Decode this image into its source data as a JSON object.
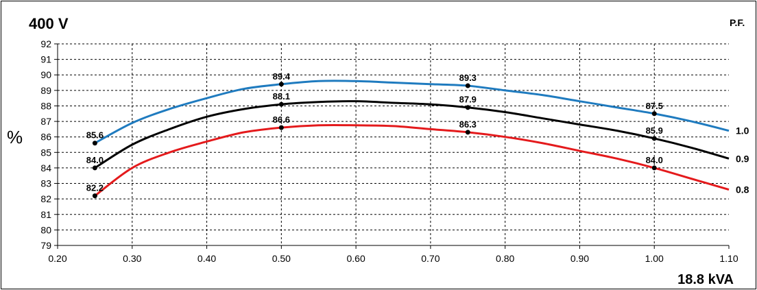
{
  "header": {
    "title": "400 V",
    "pf_label": "P.F."
  },
  "chart_data": {
    "type": "line",
    "ylabel": "%",
    "xlabel": "18.8 kVA",
    "xlim": [
      0.2,
      1.1
    ],
    "ylim": [
      79,
      92
    ],
    "x_ticks": [
      "0.20",
      "0.30",
      "0.40",
      "0.50",
      "0.60",
      "0.70",
      "0.80",
      "0.90",
      "1.00",
      "1.10"
    ],
    "y_ticks": [
      "79",
      "80",
      "81",
      "82",
      "83",
      "84",
      "85",
      "86",
      "87",
      "88",
      "89",
      "90",
      "91",
      "92"
    ],
    "grid": true,
    "series": [
      {
        "name": "1.0",
        "color": "#1f7bbf",
        "x": [
          0.25,
          0.5,
          0.75,
          1.0
        ],
        "values": [
          85.6,
          89.4,
          89.3,
          87.5
        ],
        "labels": [
          "85.6",
          "89.4",
          "89.3",
          "87.5"
        ],
        "curve_x": [
          0.25,
          0.3,
          0.35,
          0.4,
          0.45,
          0.5,
          0.55,
          0.6,
          0.65,
          0.7,
          0.75,
          0.8,
          0.85,
          0.9,
          0.95,
          1.0,
          1.05,
          1.1
        ],
        "curve_y": [
          85.6,
          86.9,
          87.8,
          88.5,
          89.1,
          89.4,
          89.6,
          89.6,
          89.5,
          89.4,
          89.3,
          89.0,
          88.7,
          88.3,
          87.9,
          87.5,
          87.0,
          86.4
        ]
      },
      {
        "name": "0.9",
        "color": "#000000",
        "x": [
          0.25,
          0.5,
          0.75,
          1.0
        ],
        "values": [
          84.0,
          88.1,
          87.9,
          85.9
        ],
        "labels": [
          "84.0",
          "88.1",
          "87.9",
          "85.9"
        ],
        "curve_x": [
          0.25,
          0.3,
          0.35,
          0.4,
          0.45,
          0.5,
          0.55,
          0.6,
          0.65,
          0.7,
          0.75,
          0.8,
          0.85,
          0.9,
          0.95,
          1.0,
          1.05,
          1.1
        ],
        "curve_y": [
          84.0,
          85.5,
          86.5,
          87.3,
          87.8,
          88.1,
          88.25,
          88.3,
          88.2,
          88.1,
          87.9,
          87.6,
          87.2,
          86.8,
          86.4,
          85.9,
          85.3,
          84.6
        ]
      },
      {
        "name": "0.8",
        "color": "#e41a1c",
        "x": [
          0.25,
          0.5,
          0.75,
          1.0
        ],
        "values": [
          82.2,
          86.6,
          86.3,
          84.0
        ],
        "labels": [
          "82.2",
          "86.6",
          "86.3",
          "84.0"
        ],
        "curve_x": [
          0.25,
          0.3,
          0.35,
          0.4,
          0.45,
          0.5,
          0.55,
          0.6,
          0.65,
          0.7,
          0.75,
          0.8,
          0.85,
          0.9,
          0.95,
          1.0,
          1.05,
          1.1
        ],
        "curve_y": [
          82.2,
          84.0,
          85.0,
          85.7,
          86.3,
          86.6,
          86.75,
          86.75,
          86.7,
          86.5,
          86.3,
          86.0,
          85.6,
          85.1,
          84.6,
          84.0,
          83.3,
          82.6
        ]
      }
    ]
  }
}
